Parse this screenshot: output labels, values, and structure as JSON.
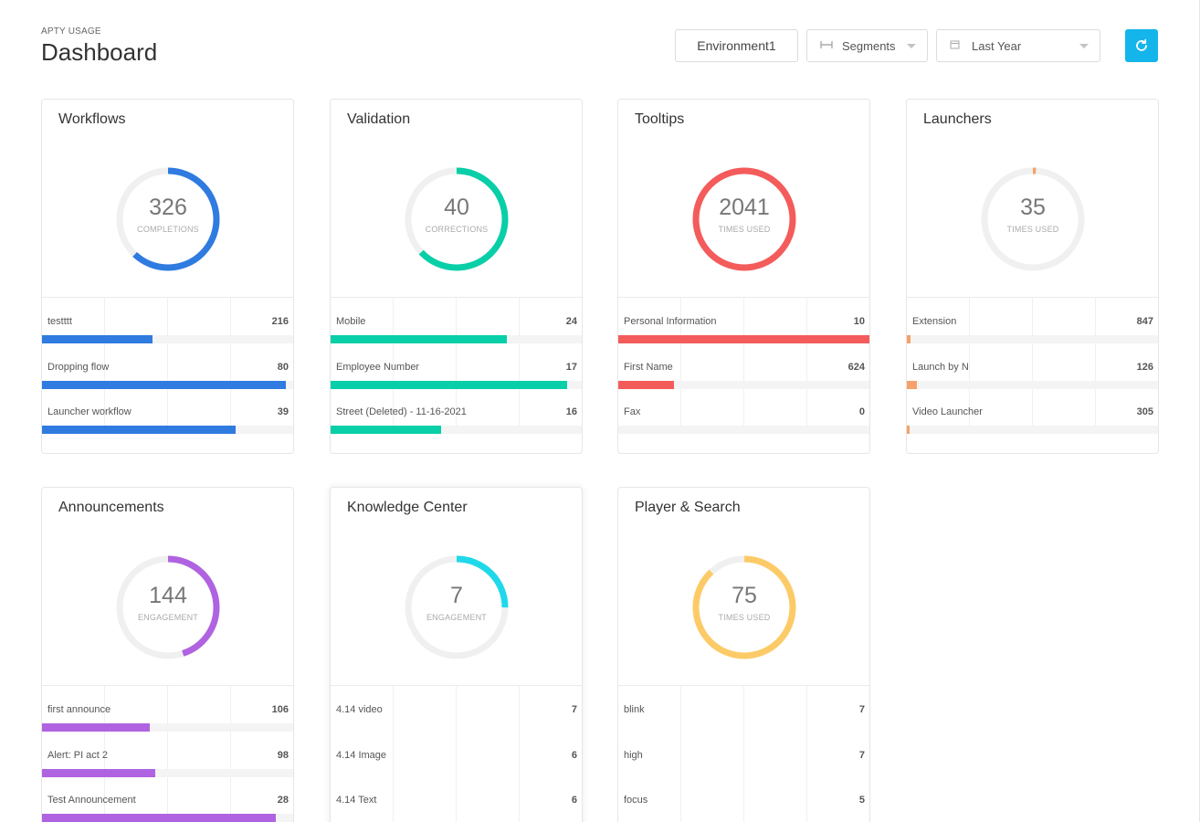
{
  "header": {
    "eyebrow": "APTY USAGE",
    "title": "Dashboard"
  },
  "controls": {
    "environment": "Environment1",
    "segments": "Segments",
    "date_range": "Last Year",
    "segments_icon": "segments-icon",
    "calendar_icon": "calendar-icon",
    "refresh_icon": "refresh-icon",
    "refresh_color": "#14b5ea"
  },
  "cards": [
    {
      "title": "Workflows",
      "total": "326",
      "caption": "COMPLETIONS",
      "color": "#2f7be0",
      "ring_fraction": 0.62,
      "rows": [
        {
          "label": "testttt",
          "value": "216",
          "fill": 0.44
        },
        {
          "label": "Dropping flow",
          "value": "80",
          "fill": 0.97
        },
        {
          "label": "Launcher workflow",
          "value": "39",
          "fill": 0.77
        }
      ]
    },
    {
      "title": "Validation",
      "total": "40",
      "caption": "CORRECTIONS",
      "color": "#08cfa8",
      "ring_fraction": 0.63,
      "rows": [
        {
          "label": "Mobile",
          "value": "24",
          "fill": 0.7
        },
        {
          "label": "Employee Number",
          "value": "17",
          "fill": 0.94
        },
        {
          "label": "Street (Deleted) - 11-16-2021",
          "value": "16",
          "fill": 0.44
        }
      ]
    },
    {
      "title": "Tooltips",
      "total": "2041",
      "caption": "TIMES USED",
      "color": "#f45b5b",
      "ring_fraction": 1.0,
      "rows": [
        {
          "label": "Personal Information",
          "value": "10",
          "fill": 1.0
        },
        {
          "label": "First Name",
          "value": "624",
          "fill": 0.22
        },
        {
          "label": "Fax",
          "value": "0",
          "fill": 0
        }
      ]
    },
    {
      "title": "Launchers",
      "total": "35",
      "caption": "TIMES USED",
      "color": "#f5a26a",
      "ring_fraction": 0.01,
      "rows": [
        {
          "label": "Extension",
          "value": "847",
          "fill": 0.015
        },
        {
          "label": "Launch by N",
          "value": "126",
          "fill": 0.04
        },
        {
          "label": "Video Launcher",
          "value": "305",
          "fill": 0.012
        }
      ]
    },
    {
      "title": "Announcements",
      "total": "144",
      "caption": "ENGAGEMENT",
      "color": "#b063e0",
      "ring_fraction": 0.45,
      "rows": [
        {
          "label": "first announce",
          "value": "106",
          "fill": 0.43
        },
        {
          "label": "Alert: PI act 2",
          "value": "98",
          "fill": 0.45
        },
        {
          "label": "Test Announcement",
          "value": "28",
          "fill": 0.93
        }
      ]
    },
    {
      "title": "Knowledge Center",
      "total": "7",
      "caption": "ENGAGEMENT",
      "color": "#1fd9ea",
      "ring_fraction": 0.25,
      "highlight": true,
      "rows": [
        {
          "label": "4.14 video",
          "value": "7"
        },
        {
          "label": "4.14 Image",
          "value": "6"
        },
        {
          "label": "4.14 Text",
          "value": "6"
        }
      ]
    },
    {
      "title": "Player & Search",
      "total": "75",
      "caption": "TIMES USED",
      "color": "#fccb67",
      "ring_fraction": 0.88,
      "rows": [
        {
          "label": "blink",
          "value": "7"
        },
        {
          "label": "high",
          "value": "7"
        },
        {
          "label": "focus",
          "value": "5"
        }
      ]
    }
  ]
}
